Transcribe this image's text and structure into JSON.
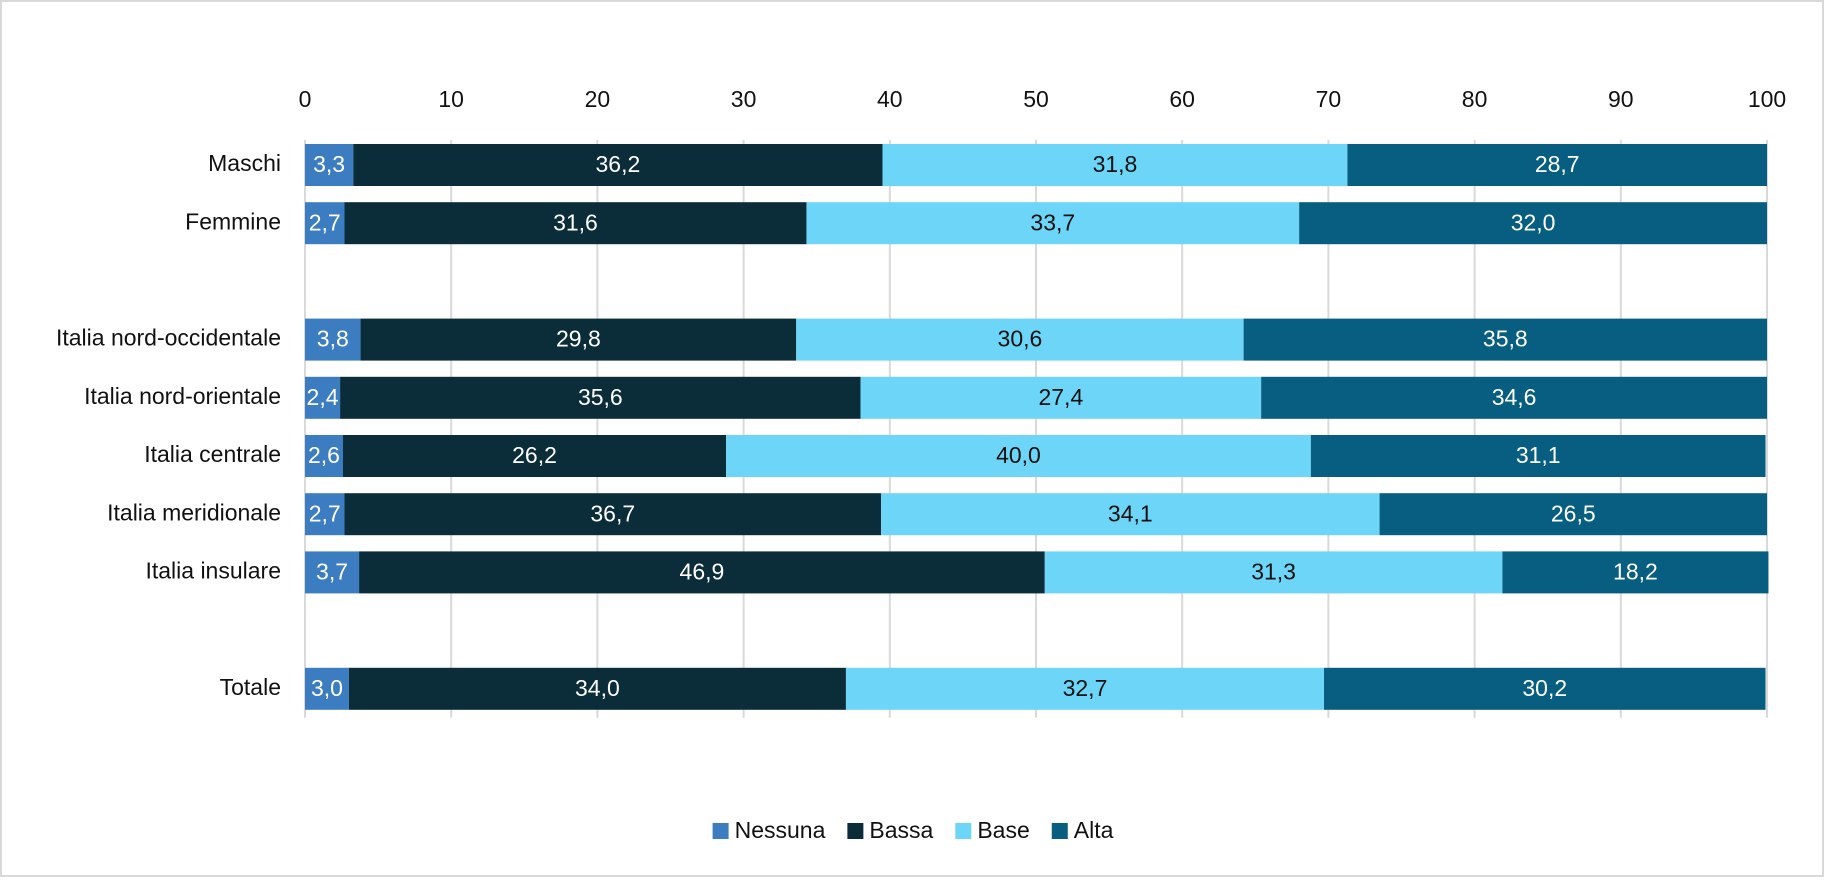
{
  "chart_data": {
    "type": "stacked-bar",
    "orientation": "horizontal",
    "categories": [
      "Maschi",
      "Femmine",
      null,
      "Italia nord-occidentale",
      "Italia nord-orientale",
      "Italia centrale",
      "Italia meridionale",
      "Italia insulare",
      null,
      "Totale"
    ],
    "series": [
      {
        "name": "Nessuna",
        "color": "#3b7dc0",
        "values": [
          3.3,
          2.7,
          null,
          3.8,
          2.4,
          2.6,
          2.7,
          3.7,
          null,
          3.0
        ],
        "value_labels": [
          "3,3",
          "2,7",
          null,
          "3,8",
          "2,4",
          "2,6",
          "2,7",
          "3,7",
          null,
          "3,0"
        ]
      },
      {
        "name": "Bassa",
        "color": "#0b2d3a",
        "values": [
          36.2,
          31.6,
          null,
          29.8,
          35.6,
          26.2,
          36.7,
          46.9,
          null,
          34.0
        ],
        "value_labels": [
          "36,2",
          "31,6",
          null,
          "29,8",
          "35,6",
          "26,2",
          "36,7",
          "46,9",
          null,
          "34,0"
        ]
      },
      {
        "name": "Base",
        "color": "#6dd5f8",
        "values": [
          31.8,
          33.7,
          null,
          30.6,
          27.4,
          40.0,
          34.1,
          31.3,
          null,
          32.7
        ],
        "value_labels": [
          "31,8",
          "33,7",
          null,
          "30,6",
          "27,4",
          "40,0",
          "34,1",
          "31,3",
          null,
          "32,7"
        ]
      },
      {
        "name": "Alta",
        "color": "#075e80",
        "values": [
          28.7,
          32.0,
          null,
          35.8,
          34.6,
          31.1,
          26.5,
          18.2,
          null,
          30.2
        ],
        "value_labels": [
          "28,7",
          "32,0",
          null,
          "35,8",
          "34,6",
          "31,1",
          "26,5",
          "18,2",
          null,
          "30,2"
        ]
      }
    ],
    "xlim": [
      0,
      100
    ],
    "xticks": [
      0,
      10,
      20,
      30,
      40,
      50,
      60,
      70,
      80,
      90,
      100
    ],
    "grid": true,
    "legend": "bottom"
  }
}
